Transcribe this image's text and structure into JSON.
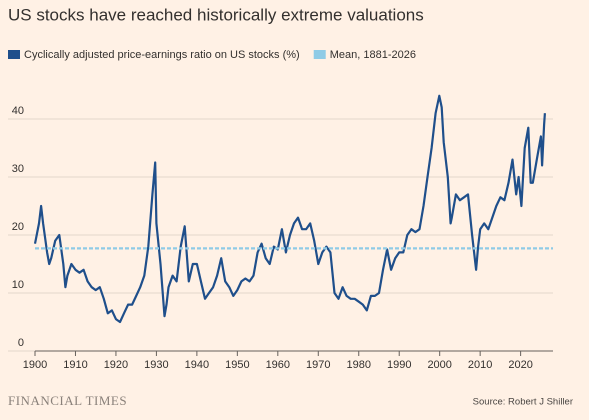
{
  "chart_data": {
    "type": "line",
    "title": "US stocks have reached historically extreme valuations",
    "source": "Source: Robert J Shiller",
    "brand": "FINANCIAL TIMES",
    "series": [
      {
        "name": "Cyclically adjusted price-earnings ratio on US stocks (%)",
        "color": "#1f4f8b",
        "x": [
          1900,
          1901,
          1901.5,
          1902,
          1903,
          1903.5,
          1904,
          1905,
          1906,
          1907,
          1907.5,
          1908,
          1909,
          1910,
          1911,
          1912,
          1913,
          1914,
          1915,
          1916,
          1917,
          1918,
          1919,
          1920,
          1921,
          1922,
          1923,
          1924,
          1925,
          1926,
          1927,
          1928,
          1929,
          1929.7,
          1930,
          1931,
          1932,
          1932.5,
          1933,
          1934,
          1935,
          1936,
          1937,
          1938,
          1939,
          1940,
          1941,
          1942,
          1943,
          1944,
          1945,
          1946,
          1947,
          1948,
          1949,
          1950,
          1951,
          1952,
          1953,
          1954,
          1955,
          1956,
          1957,
          1958,
          1959,
          1960,
          1961,
          1962,
          1963,
          1964,
          1965,
          1966,
          1967,
          1968,
          1969,
          1970,
          1971,
          1972,
          1973,
          1974,
          1975,
          1976,
          1977,
          1978,
          1979,
          1980,
          1981,
          1982,
          1983,
          1984,
          1985,
          1986,
          1987,
          1988,
          1989,
          1990,
          1991,
          1992,
          1993,
          1994,
          1995,
          1996,
          1997,
          1998,
          1999,
          1999.9,
          2000.5,
          2001,
          2002,
          2002.7,
          2003,
          2004,
          2005,
          2006,
          2007,
          2008,
          2009,
          2009.5,
          2010,
          2011,
          2012,
          2013,
          2014,
          2015,
          2016,
          2017,
          2018,
          2018.9,
          2019.5,
          2020.2,
          2021,
          2021.9,
          2022.5,
          2023,
          2024,
          2025,
          2025.3,
          2025.8,
          2026
        ],
        "values": [
          18.5,
          22,
          25,
          22,
          17,
          15,
          16,
          19,
          20,
          15,
          11,
          13,
          15,
          14,
          13.5,
          14,
          12,
          11,
          10.5,
          11,
          9,
          6.5,
          7,
          5.5,
          5,
          6.5,
          8,
          8,
          9.5,
          11,
          13,
          18,
          27,
          32.5,
          22,
          15,
          6,
          8,
          11,
          13,
          12,
          18,
          21.5,
          12,
          15,
          15,
          12,
          9,
          10,
          11,
          13,
          16,
          12,
          11,
          9.5,
          10.5,
          12,
          12.5,
          12,
          13,
          17,
          18.5,
          16,
          15,
          18,
          17.5,
          21,
          17,
          20,
          22,
          23,
          21,
          21,
          22,
          19,
          15,
          17,
          18,
          17,
          10,
          9,
          11,
          9.5,
          9,
          9,
          8.5,
          8,
          7,
          9.5,
          9.5,
          10,
          14,
          17.5,
          14,
          16,
          17,
          17,
          20,
          21,
          20.5,
          21,
          25,
          30,
          35,
          41,
          44,
          42,
          36,
          30,
          22,
          23,
          27,
          26,
          26.5,
          27,
          20,
          14,
          18,
          21,
          22,
          21,
          23,
          25,
          26.5,
          26,
          29,
          33,
          27,
          30,
          25,
          35,
          38.5,
          29,
          29,
          33,
          37,
          32,
          39,
          41
        ]
      }
    ],
    "mean": {
      "name": "Mean, 1881-2026",
      "color": "#8fcbe6",
      "value": 17.7
    },
    "xlim": [
      1900,
      2028
    ],
    "xticks": [
      1900,
      1910,
      1920,
      1930,
      1940,
      1950,
      1960,
      1970,
      1980,
      1990,
      2000,
      2010,
      2020
    ],
    "ylim": [
      0,
      45
    ],
    "yticks": [
      0,
      10,
      20,
      30,
      40
    ],
    "grid": true
  }
}
